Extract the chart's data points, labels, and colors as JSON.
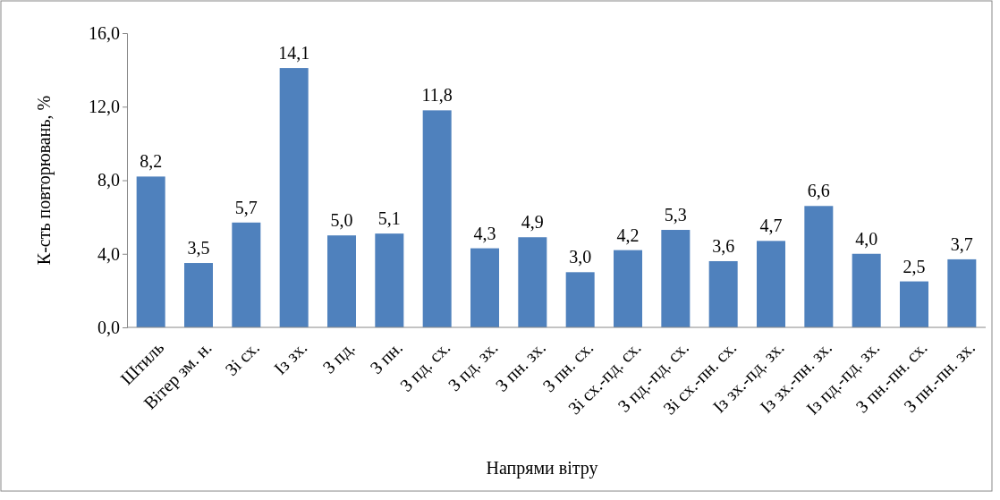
{
  "chart_data": {
    "type": "bar",
    "xlabel": "Напрями вітру",
    "ylabel": "К-сть повторювань, %",
    "categories": [
      "Штиль",
      "Вітер зм. н.",
      "Зі сх.",
      "Із зх.",
      "З пд.",
      "З пн.",
      "З пд. сх.",
      "З пд. зх.",
      "З пн. зх.",
      "З пн. сх.",
      "Зі сх.-пд. сх.",
      "З пд.-пд. сх.",
      "Зі сх.-пн. сх.",
      "Із зх.-пд. зх.",
      "Із зх.-пн. зх.",
      "Із пд.-пд. зх.",
      "З пн.-пн. сх.",
      "З пн.-пн. зх."
    ],
    "values": [
      8.2,
      3.5,
      5.7,
      14.1,
      5.0,
      5.1,
      11.8,
      4.3,
      4.9,
      3.0,
      4.2,
      5.3,
      3.6,
      4.7,
      6.6,
      4.0,
      2.5,
      3.7
    ],
    "value_labels": [
      "8,2",
      "3,5",
      "5,7",
      "14,1",
      "5,0",
      "5,1",
      "11,8",
      "4,3",
      "4,9",
      "3,0",
      "4,2",
      "5,3",
      "3,6",
      "4,7",
      "6,6",
      "4,0",
      "2,5",
      "3,7"
    ],
    "color": "#4f81bd",
    "ylim": [
      0,
      16
    ],
    "yticks": [
      {
        "value": 0,
        "label": "0,0"
      },
      {
        "value": 4,
        "label": "4,0"
      },
      {
        "value": 8,
        "label": "8,0"
      },
      {
        "value": 12,
        "label": "12,0"
      },
      {
        "value": 16,
        "label": "16,0"
      }
    ],
    "grid": false
  }
}
